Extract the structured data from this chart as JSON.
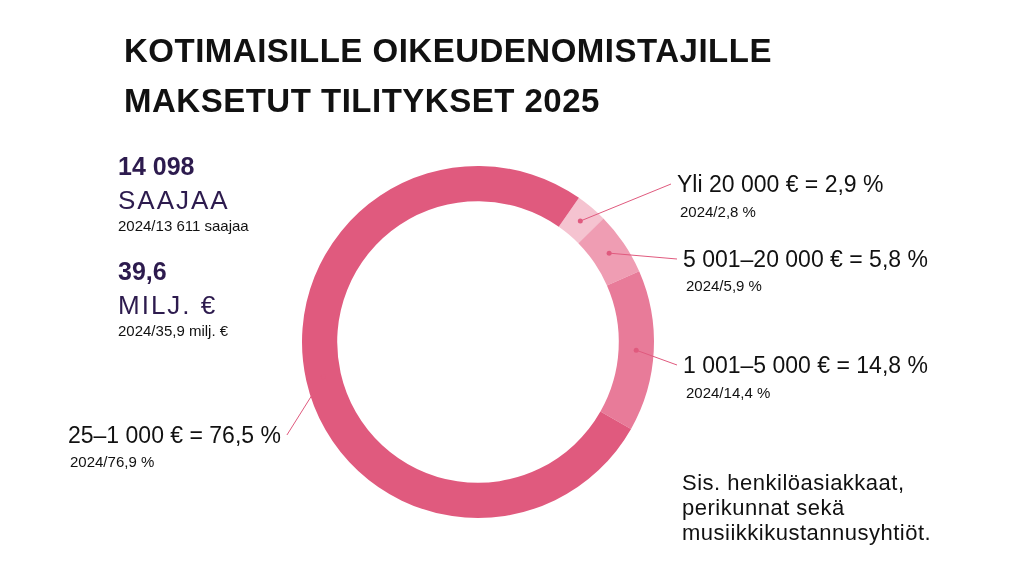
{
  "chart_data": {
    "type": "donut",
    "title": "KOTIMAISILLE OIKEUDENOMISTAJILLE MAKSETUT TILITYKSET 2025",
    "categories": [
      "Yli 20 000 €",
      "5 001–20 000 €",
      "1 001–5 000 €",
      "25–1 000 €"
    ],
    "values": [
      2.9,
      5.8,
      14.8,
      76.5
    ],
    "value_labels": [
      "= 2,9 %",
      "= 5,8 %",
      "= 14,8 %",
      "= 76,5 %"
    ],
    "colors": [
      "#f5c3d0",
      "#ef9db3",
      "#e87b99",
      "#e05a7e"
    ],
    "annotations": [
      "2024/2,8 %",
      "2024/5,9 %",
      "2024/14,4 %",
      "2024/76,9 %",
      "14 098",
      "SAAJAA",
      "2024/13 611 saajaa",
      "39,6",
      "MILJ. €",
      "2024/35,9 milj. €",
      "Sis. henkilöasiakkaat, perikunnat sekä musiikkikustannusyhtiöt."
    ],
    "legend": false
  }
}
